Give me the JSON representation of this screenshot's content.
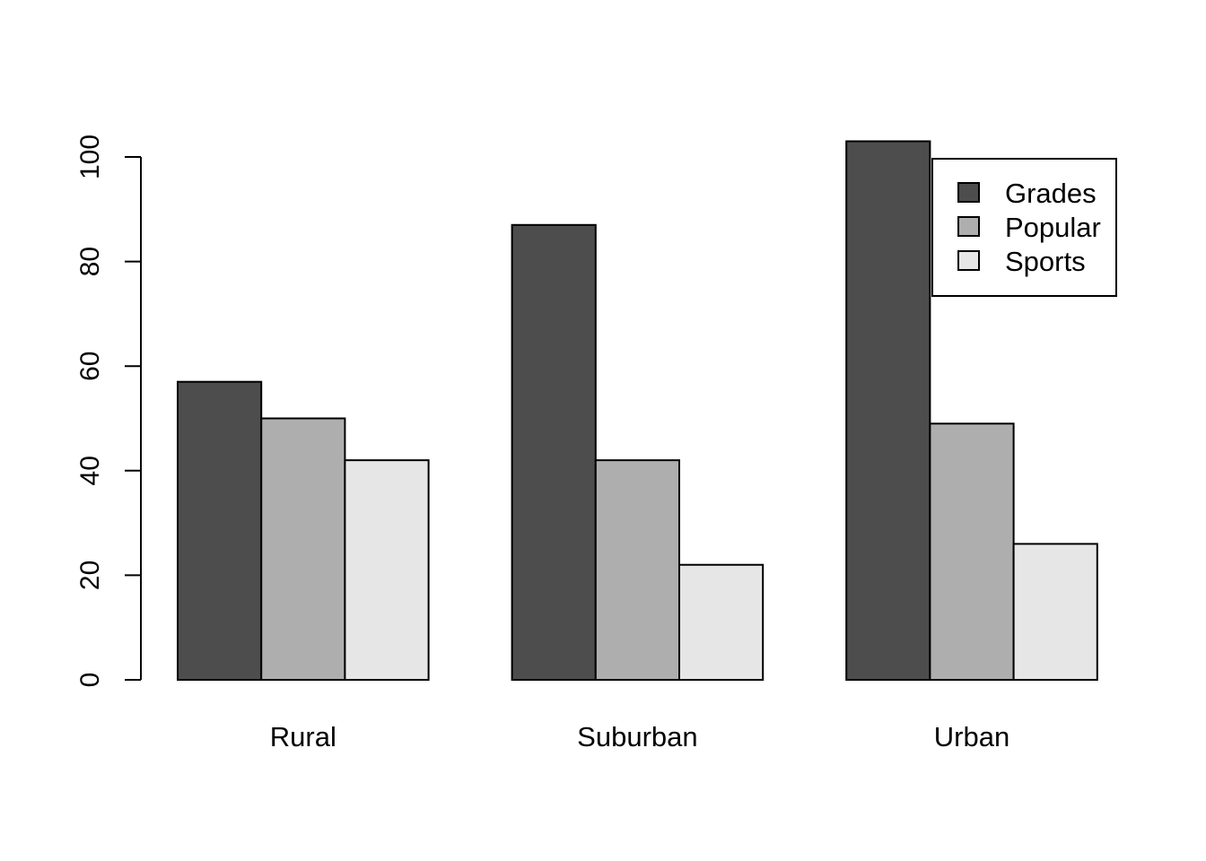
{
  "chart_data": {
    "type": "bar",
    "categories": [
      "Rural",
      "Suburban",
      "Urban"
    ],
    "series": [
      {
        "name": "Grades",
        "values": [
          57,
          87,
          103
        ],
        "color": "#4d4d4d"
      },
      {
        "name": "Popular",
        "values": [
          50,
          42,
          49
        ],
        "color": "#aeaeae"
      },
      {
        "name": "Sports",
        "values": [
          42,
          22,
          26
        ],
        "color": "#e6e6e6"
      }
    ],
    "title": "",
    "xlabel": "",
    "ylabel": "",
    "ylim": [
      0,
      100
    ],
    "yticks": [
      "0",
      "20",
      "40",
      "60",
      "80",
      "100"
    ],
    "grid": false,
    "legend_position": "top-right",
    "grouping": "side-by-side"
  }
}
